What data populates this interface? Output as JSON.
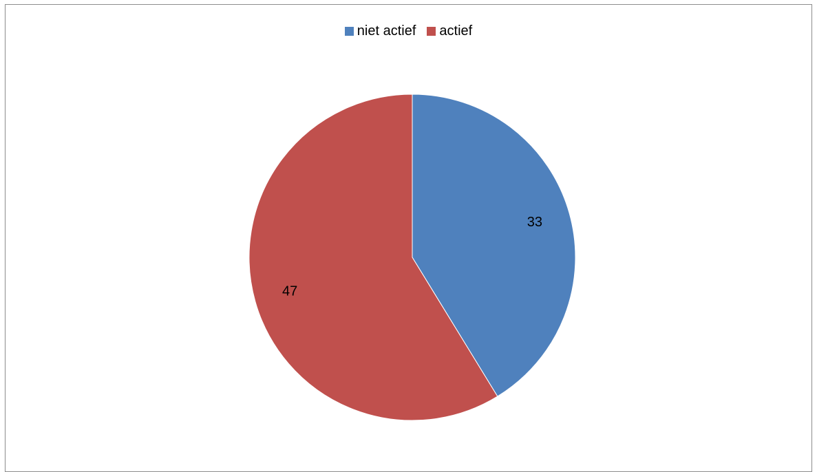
{
  "chart_data": {
    "type": "pie",
    "categories": [
      "niet actief",
      "actief"
    ],
    "values": [
      33,
      47
    ],
    "colors": [
      "#4f81bd",
      "#c0504d"
    ],
    "data_labels": [
      "33",
      "47"
    ],
    "legend_position": "top",
    "start_angle": "12 o'clock",
    "direction": "clockwise"
  }
}
